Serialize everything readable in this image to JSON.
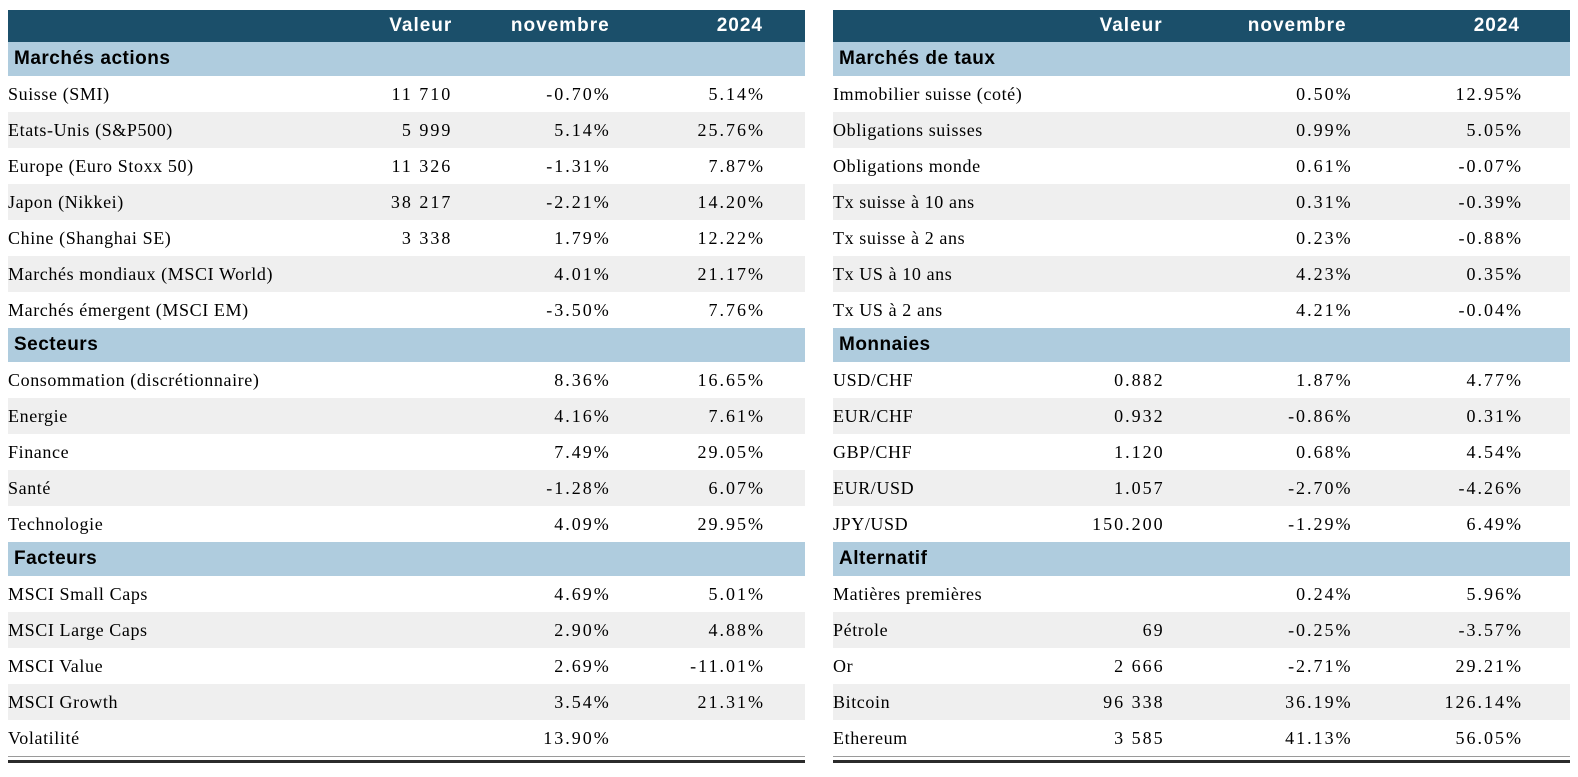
{
  "palette": {
    "header_bg": "#1B4F6A",
    "header_text": "#FFFFFF",
    "section_bg": "#AFCCDE",
    "stripe_bg": "#EFEFEF",
    "text": "#000000"
  },
  "column_headers": {
    "valeur": "Valeur",
    "novembre": "novembre",
    "ytd": "2024"
  },
  "tables": [
    {
      "name": "marches-actions",
      "sections": [
        {
          "title": "Marchés actions",
          "rows": [
            {
              "label": "Suisse (SMI)",
              "valeur": "11 710",
              "novembre": "-0.70%",
              "ytd": "5.14%"
            },
            {
              "label": "Etats-Unis (S&P500)",
              "valeur": "5 999",
              "novembre": "5.14%",
              "ytd": "25.76%"
            },
            {
              "label": "Europe (Euro Stoxx 50)",
              "valeur": "11 326",
              "novembre": "-1.31%",
              "ytd": "7.87%"
            },
            {
              "label": "Japon (Nikkei)",
              "valeur": "38 217",
              "novembre": "-2.21%",
              "ytd": "14.20%"
            },
            {
              "label": "Chine (Shanghai SE)",
              "valeur": "3 338",
              "novembre": "1.79%",
              "ytd": "12.22%"
            },
            {
              "label": "Marchés mondiaux (MSCI World)",
              "valeur": "",
              "novembre": "4.01%",
              "ytd": "21.17%"
            },
            {
              "label": "Marchés émergent (MSCI EM)",
              "valeur": "",
              "novembre": "-3.50%",
              "ytd": "7.76%"
            }
          ]
        },
        {
          "title": "Secteurs",
          "rows": [
            {
              "label": "Consommation (discrétionnaire)",
              "valeur": "",
              "novembre": "8.36%",
              "ytd": "16.65%"
            },
            {
              "label": "Energie",
              "valeur": "",
              "novembre": "4.16%",
              "ytd": "7.61%"
            },
            {
              "label": "Finance",
              "valeur": "",
              "novembre": "7.49%",
              "ytd": "29.05%"
            },
            {
              "label": "Santé",
              "valeur": "",
              "novembre": "-1.28%",
              "ytd": "6.07%"
            },
            {
              "label": "Technologie",
              "valeur": "",
              "novembre": "4.09%",
              "ytd": "29.95%"
            }
          ]
        },
        {
          "title": "Facteurs",
          "rows": [
            {
              "label": "MSCI Small Caps",
              "valeur": "",
              "novembre": "4.69%",
              "ytd": "5.01%"
            },
            {
              "label": "MSCI Large Caps",
              "valeur": "",
              "novembre": "2.90%",
              "ytd": "4.88%"
            },
            {
              "label": "MSCI Value",
              "valeur": "",
              "novembre": "2.69%",
              "ytd": "-11.01%"
            },
            {
              "label": "MSCI Growth",
              "valeur": "",
              "novembre": "3.54%",
              "ytd": "21.31%"
            },
            {
              "label": "Volatilité",
              "valeur": "",
              "novembre": "13.90%",
              "ytd": ""
            }
          ]
        }
      ]
    },
    {
      "name": "marches-taux",
      "sections": [
        {
          "title": "Marchés de taux",
          "rows": [
            {
              "label": "Immobilier suisse (coté)",
              "valeur": "",
              "novembre": "0.50%",
              "ytd": "12.95%"
            },
            {
              "label": "Obligations suisses",
              "valeur": "",
              "novembre": "0.99%",
              "ytd": "5.05%"
            },
            {
              "label": "Obligations monde",
              "valeur": "",
              "novembre": "0.61%",
              "ytd": "-0.07%"
            },
            {
              "label": "Tx suisse à 10 ans",
              "valeur": "",
              "novembre": "0.31%",
              "ytd": "-0.39%"
            },
            {
              "label": "Tx suisse à 2 ans",
              "valeur": "",
              "novembre": "0.23%",
              "ytd": "-0.88%"
            },
            {
              "label": "Tx US à 10 ans",
              "valeur": "",
              "novembre": "4.23%",
              "ytd": "0.35%"
            },
            {
              "label": "Tx US à 2 ans",
              "valeur": "",
              "novembre": "4.21%",
              "ytd": "-0.04%"
            }
          ]
        },
        {
          "title": "Monnaies",
          "rows": [
            {
              "label": "USD/CHF",
              "valeur": "0.882",
              "novembre": "1.87%",
              "ytd": "4.77%"
            },
            {
              "label": "EUR/CHF",
              "valeur": "0.932",
              "novembre": "-0.86%",
              "ytd": "0.31%"
            },
            {
              "label": "GBP/CHF",
              "valeur": "1.120",
              "novembre": "0.68%",
              "ytd": "4.54%"
            },
            {
              "label": "EUR/USD",
              "valeur": "1.057",
              "novembre": "-2.70%",
              "ytd": "-4.26%"
            },
            {
              "label": "JPY/USD",
              "valeur": "150.200",
              "novembre": "-1.29%",
              "ytd": "6.49%"
            }
          ]
        },
        {
          "title": "Alternatif",
          "rows": [
            {
              "label": "Matières premières",
              "valeur": "",
              "novembre": "0.24%",
              "ytd": "5.96%"
            },
            {
              "label": "Pétrole",
              "valeur": "69",
              "novembre": "-0.25%",
              "ytd": "-3.57%"
            },
            {
              "label": "Or",
              "valeur": "2 666",
              "novembre": "-2.71%",
              "ytd": "29.21%"
            },
            {
              "label": "Bitcoin",
              "valeur": "96 338",
              "novembre": "36.19%",
              "ytd": "126.14%"
            },
            {
              "label": "Ethereum",
              "valeur": "3 585",
              "novembre": "41.13%",
              "ytd": "56.05%"
            }
          ]
        }
      ]
    }
  ]
}
